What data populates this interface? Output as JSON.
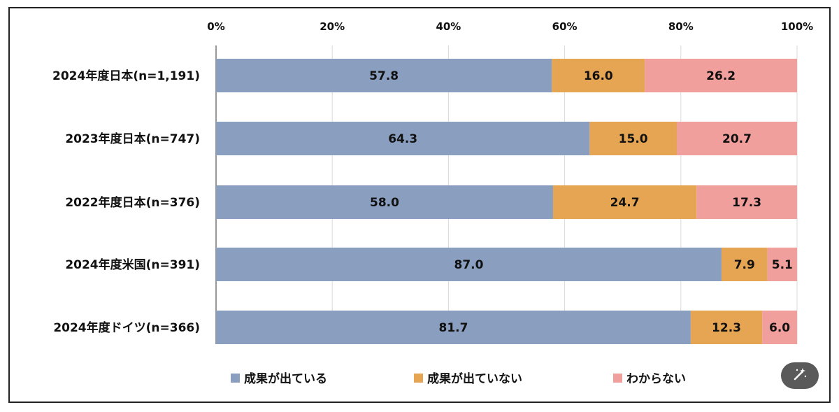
{
  "chart_data": {
    "type": "bar",
    "orientation": "horizontal",
    "stacked": true,
    "categories": [
      "2024年度日本(n=1,191)",
      "2023年度日本(n=747)",
      "2022年度日本(n=376)",
      "2024年度米国(n=391)",
      "2024年度ドイツ(n=366)"
    ],
    "series": [
      {
        "name": "成果が出ている",
        "color": "#8a9fbf",
        "values": [
          57.8,
          64.3,
          58.0,
          87.0,
          81.7
        ],
        "labels": [
          "57.8",
          "64.3",
          "58.0",
          "87.0",
          "81.7"
        ]
      },
      {
        "name": "成果が出ていない",
        "color": "#e6a553",
        "values": [
          16.0,
          15.0,
          24.7,
          7.9,
          12.3
        ],
        "labels": [
          "16.0",
          "15.0",
          "24.7",
          "7.9",
          "12.3"
        ]
      },
      {
        "name": "わからない",
        "color": "#f19f9c",
        "values": [
          26.2,
          20.7,
          17.3,
          5.1,
          6.0
        ],
        "labels": [
          "26.2",
          "20.7",
          "17.3",
          "5.1",
          "6.0"
        ]
      }
    ],
    "xticks": [
      "0%",
      "20%",
      "40%",
      "60%",
      "80%",
      "100%"
    ],
    "xlim": [
      0,
      100
    ],
    "grid": true,
    "legend_position": "bottom"
  },
  "toolbar": {
    "magic_icon": "magic-wand-icon"
  }
}
